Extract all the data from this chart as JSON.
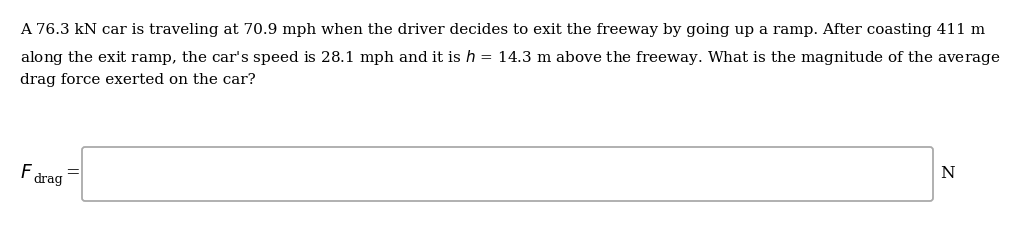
{
  "background_color": "#ffffff",
  "line1": "A 76.3 kN car is traveling at 70.9 mph when the driver decides to exit the freeway by going up a ramp. After coasting 411 m",
  "line2_pre": "along the exit ramp, the car's speed is 28.1 mph and it is ",
  "line2_post": " = 14.3 m above the freeway. What is the magnitude of the average",
  "line3": "drag force exerted on the car?",
  "text_color": "#000000",
  "box_edge_color": "#aaaaaa",
  "font_size_body": 11.0,
  "font_size_label": 12.5,
  "font_size_sub": 9.0,
  "font_size_N": 12.0
}
